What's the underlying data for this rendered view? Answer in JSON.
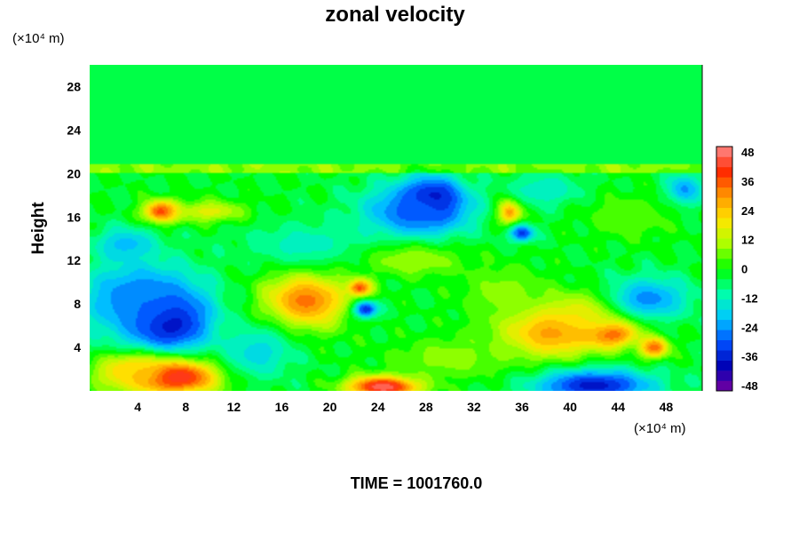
{
  "chart_data": {
    "type": "heatmap",
    "title": "zonal velocity",
    "ylabel": "Height",
    "xunit": "(×10⁴ m)",
    "yunit": "(×10⁴ m)",
    "footer": "TIME = 1001760.0",
    "xlim": [
      0,
      51
    ],
    "ylim": [
      0,
      30
    ],
    "xticks": [
      4,
      8,
      12,
      16,
      20,
      24,
      28,
      32,
      36,
      40,
      44,
      48
    ],
    "yticks": [
      4,
      8,
      12,
      16,
      20,
      24,
      28
    ],
    "colorbar": {
      "min": -48,
      "max": 48,
      "ticks": [
        48,
        36,
        24,
        12,
        0,
        -12,
        -24,
        -36,
        -48
      ],
      "colors": [
        "#7a00a0",
        "#0000b4",
        "#0050ff",
        "#00c8ff",
        "#00ffaa",
        "#00ff00",
        "#aaff00",
        "#ffe600",
        "#ff9600",
        "#ff2800",
        "#ff8c8c"
      ]
    },
    "background_value": -2,
    "features": [
      {
        "x": 6.5,
        "y": 6.5,
        "rx": 3.5,
        "ry": 3.0,
        "value": -44
      },
      {
        "x": 4.0,
        "y": 8.5,
        "rx": 5.0,
        "ry": 3.5,
        "value": -26
      },
      {
        "x": 7.0,
        "y": 1.3,
        "rx": 4.0,
        "ry": 1.6,
        "value": 46
      },
      {
        "x": 3.5,
        "y": 1.8,
        "rx": 3.0,
        "ry": 1.6,
        "value": 22
      },
      {
        "x": 18.0,
        "y": 8.3,
        "rx": 3.5,
        "ry": 2.6,
        "value": 32
      },
      {
        "x": 22.5,
        "y": 9.5,
        "rx": 1.0,
        "ry": 0.8,
        "value": 36
      },
      {
        "x": 24.5,
        "y": 0.4,
        "rx": 3.0,
        "ry": 1.0,
        "value": 48
      },
      {
        "x": 28.5,
        "y": 17.5,
        "rx": 2.5,
        "ry": 2.0,
        "value": -48
      },
      {
        "x": 27.0,
        "y": 16.5,
        "rx": 4.5,
        "ry": 2.5,
        "value": -28
      },
      {
        "x": 6.0,
        "y": 16.5,
        "rx": 1.5,
        "ry": 1.0,
        "value": 40
      },
      {
        "x": 10.0,
        "y": 16.5,
        "rx": 3.0,
        "ry": 1.0,
        "value": 16
      },
      {
        "x": 35.0,
        "y": 16.5,
        "rx": 1.0,
        "ry": 1.2,
        "value": 30
      },
      {
        "x": 36.0,
        "y": 14.5,
        "rx": 1.0,
        "ry": 0.8,
        "value": -32
      },
      {
        "x": 38.5,
        "y": 5.5,
        "rx": 4.5,
        "ry": 2.5,
        "value": 30
      },
      {
        "x": 43.5,
        "y": 5.5,
        "rx": 2.0,
        "ry": 1.3,
        "value": 44
      },
      {
        "x": 47.0,
        "y": 4.0,
        "rx": 1.2,
        "ry": 1.0,
        "value": 34
      },
      {
        "x": 42.0,
        "y": 7.0,
        "rx": 3.5,
        "ry": 2.0,
        "value": 20
      },
      {
        "x": 42.0,
        "y": 0.5,
        "rx": 5.0,
        "ry": 1.5,
        "value": -36
      },
      {
        "x": 46.5,
        "y": 8.5,
        "rx": 3.5,
        "ry": 2.0,
        "value": -24
      },
      {
        "x": 23.0,
        "y": 7.5,
        "rx": 1.0,
        "ry": 0.8,
        "value": -34
      },
      {
        "x": 14.0,
        "y": 3.5,
        "rx": 3.0,
        "ry": 2.5,
        "value": -16
      },
      {
        "x": 30.0,
        "y": 3.0,
        "rx": 5.0,
        "ry": 2.0,
        "value": 8
      },
      {
        "x": 34.5,
        "y": 9.0,
        "rx": 3.5,
        "ry": 2.5,
        "value": 8
      },
      {
        "x": 49.5,
        "y": 18.5,
        "rx": 1.5,
        "ry": 1.5,
        "value": -24
      },
      {
        "x": 18.0,
        "y": 13.5,
        "rx": 5.0,
        "ry": 2.0,
        "value": -12
      },
      {
        "x": 38.0,
        "y": 18.5,
        "rx": 3.0,
        "ry": 1.5,
        "value": -14
      },
      {
        "x": 45.0,
        "y": 16.0,
        "rx": 3.5,
        "ry": 2.0,
        "value": 6
      },
      {
        "x": 3.0,
        "y": 13.5,
        "rx": 2.5,
        "ry": 1.5,
        "value": -20
      },
      {
        "x": 27.0,
        "y": 12.0,
        "rx": 4.0,
        "ry": 1.5,
        "value": 10
      }
    ]
  }
}
